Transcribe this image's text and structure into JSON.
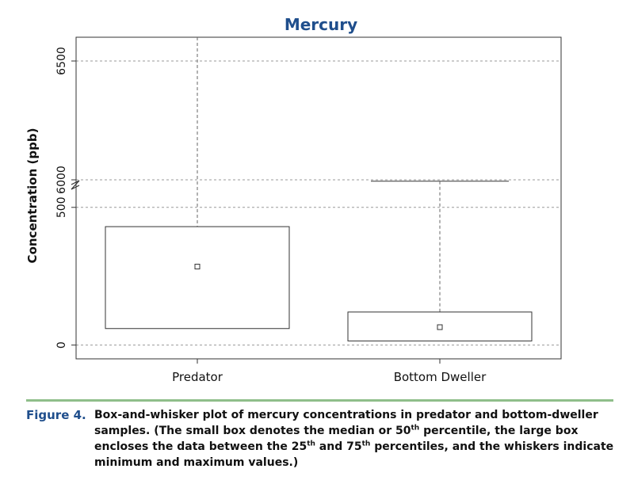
{
  "chart_data": {
    "type": "box",
    "title": "Mercury",
    "ylabel": "Concentration (ppb)",
    "xlabel": "",
    "categories": [
      "Predator",
      "Bottom Dweller"
    ],
    "axis_break": true,
    "y_ticks_lower": [
      0,
      500
    ],
    "y_ticks_upper": [
      6000,
      6500
    ],
    "ylim_lower": [
      -50,
      600
    ],
    "ylim_upper": [
      6000,
      6600
    ],
    "grid": true,
    "series": [
      {
        "category": "Predator",
        "min": 60,
        "q1": 60,
        "median": 285,
        "q3": 430,
        "max": 6600
      },
      {
        "category": "Bottom Dweller",
        "min": 15,
        "q1": 15,
        "median": 65,
        "q3": 120,
        "max": 595
      }
    ]
  },
  "caption": {
    "label": "Figure 4.",
    "text_1": "Box-and-whisker plot of mercury concentrations in predator and bottom-dweller samples. (The small box denotes the median or 50",
    "sup_1": "th",
    "text_2": " percentile, the large box encloses the data between the 25",
    "sup_2": "th",
    "text_3": " and 75",
    "sup_3": "th",
    "text_4": " percentiles, and the whiskers indicate minimum and maximum values.)"
  },
  "colors": {
    "title": "#1f4e8c",
    "caption_label": "#1f4e8c",
    "divider": "#8fbe8a",
    "grid": "#999999",
    "stroke": "#333333"
  }
}
